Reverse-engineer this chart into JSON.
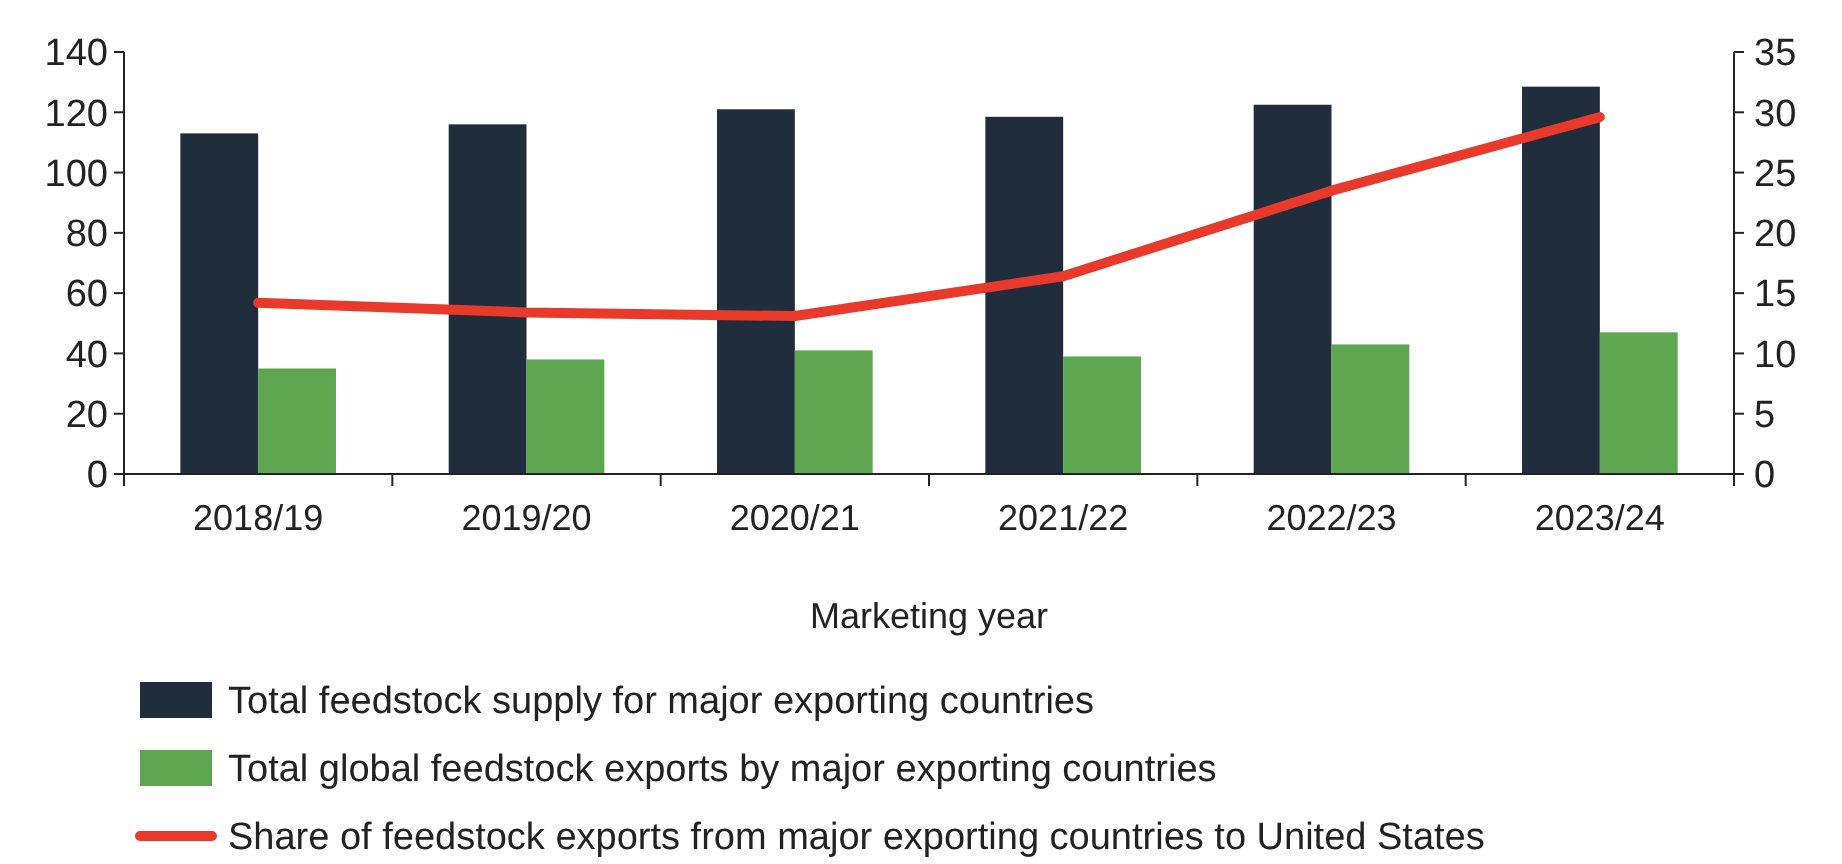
{
  "chart_data": {
    "type": "bar",
    "xlabel": "Marketing year",
    "categories": [
      "2018/19",
      "2019/20",
      "2020/21",
      "2021/22",
      "2022/23",
      "2023/24"
    ],
    "series": [
      {
        "name": "Total feedstock supply for major exporting countries",
        "color": "#1f2d3d",
        "values": [
          113,
          116,
          121,
          118.5,
          122.5,
          128.5
        ]
      },
      {
        "name": "Total global feedstock exports by major exporting countries",
        "color": "#5fa651",
        "values": [
          35,
          38,
          41,
          39,
          43,
          47
        ]
      },
      {
        "name": "Share of feedstock exports from major exporting countries to United States",
        "type": "line",
        "axis": "y2",
        "color": "#e8392a",
        "values": [
          14.2,
          13.4,
          13.1,
          16.4,
          23.5,
          29.6
        ]
      }
    ],
    "ylim": [
      0,
      140
    ],
    "yticks": [
      0,
      20,
      40,
      60,
      80,
      100,
      120,
      140
    ],
    "y2lim": [
      0,
      35
    ],
    "y2ticks": [
      0,
      5,
      10,
      15,
      20,
      25,
      30,
      35
    ],
    "legend": "bottom",
    "grid": false
  }
}
